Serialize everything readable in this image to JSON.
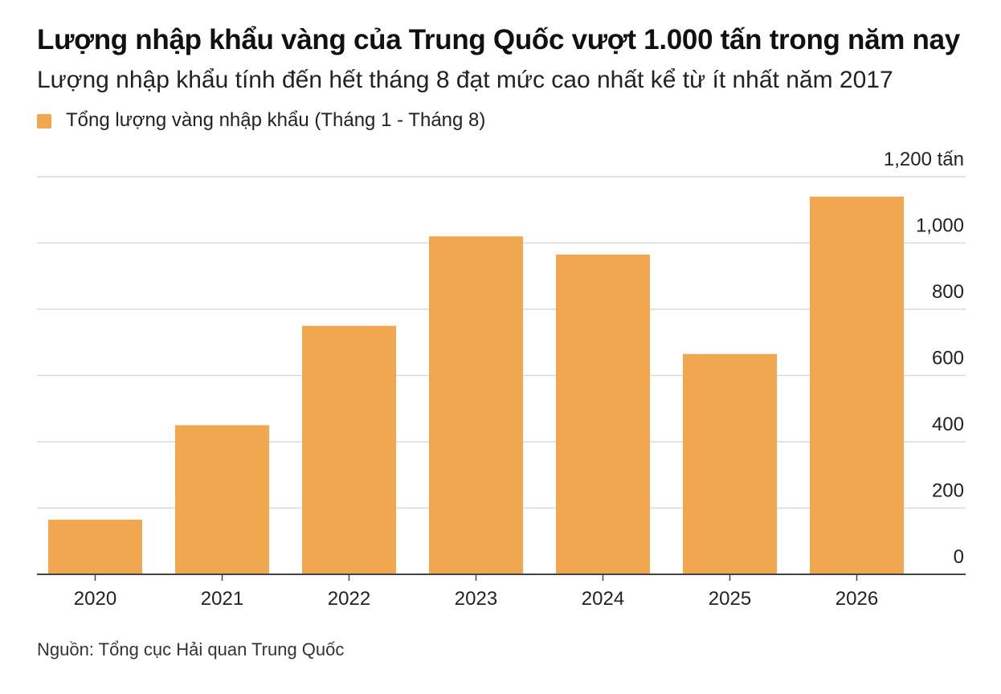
{
  "title": "Lượng nhập khẩu vàng của Trung Quốc vượt 1.000 tấn trong năm nay",
  "subtitle": "Lượng nhập khẩu tính đến hết tháng 8 đạt mức cao nhất kể từ ít nhất năm 2017",
  "source": "Nguồn: Tổng cục Hải quan Trung Quốc",
  "colors": {
    "bar": "#f0a74f",
    "grid": "#d9d9d9",
    "axis": "#444444"
  },
  "chart_data": {
    "type": "bar",
    "title": "Lượng nhập khẩu vàng của Trung Quốc vượt 1.000 tấn trong năm nay",
    "subtitle": "Lượng nhập khẩu tính đến hết tháng 8 đạt mức cao nhất kể từ ít nhất năm 2017",
    "categories": [
      "2020",
      "2021",
      "2022",
      "2023",
      "2024",
      "2025",
      "2026"
    ],
    "series": [
      {
        "name": "Tổng lượng vàng nhập khẩu (Tháng 1 - Tháng 8)",
        "values": [
          165,
          450,
          750,
          1020,
          965,
          665,
          1140
        ]
      }
    ],
    "ylim": [
      0,
      1200
    ],
    "yticks": [
      0,
      200,
      400,
      600,
      800,
      1000,
      1200
    ],
    "ytick_labels": [
      "0",
      "200",
      "400",
      "600",
      "800",
      "1,000",
      "1,200 tấn"
    ],
    "y_axis_side": "right",
    "grid": true,
    "legend_position": "top-left"
  }
}
